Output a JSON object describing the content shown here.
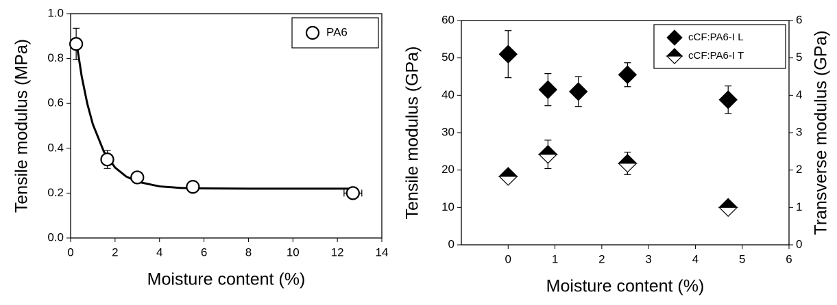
{
  "chart_data": [
    {
      "type": "scatter",
      "xlabel": "Moisture content (%)",
      "ylabel": "Tensile modulus (MPa)",
      "xlim": [
        0,
        14
      ],
      "xticks": [
        0,
        2,
        4,
        6,
        8,
        10,
        12,
        14
      ],
      "ylim": [
        0,
        1
      ],
      "yticks": [
        {
          "value": 0,
          "label": "0.0"
        },
        0.2,
        0.4,
        0.6,
        0.8,
        {
          "value": 1,
          "label": "1.0"
        }
      ],
      "legend": "upper right",
      "series": [
        {
          "name": "PA6",
          "color": "#000000",
          "marker": "circle",
          "x": [
            0.25,
            1.65,
            3.0,
            5.5,
            12.7
          ],
          "values": [
            0.865,
            0.35,
            0.27,
            0.228,
            0.2
          ],
          "errors": [
            0.07,
            0.04,
            0.02,
            0.01,
            0.01
          ],
          "xerrors": [
            0,
            0,
            0,
            0,
            0.4
          ]
        }
      ],
      "curve": {
        "color": "#000000",
        "x": [
          0.25,
          0.5,
          0.75,
          1,
          1.5,
          2,
          2.5,
          3,
          4,
          5,
          6,
          8,
          10,
          12.7
        ],
        "values": [
          0.88,
          0.72,
          0.599,
          0.507,
          0.384,
          0.314,
          0.274,
          0.251,
          0.23,
          0.223,
          0.221,
          0.22,
          0.22,
          0.22
        ]
      }
    },
    {
      "type": "scatter",
      "xlabel": "Moisture content (%)",
      "ylabel": "Tensile modulus (GPa)",
      "y2label": "Transverse modulus (GPa)",
      "xlim": [
        -1,
        6
      ],
      "xticks": [
        0,
        1,
        2,
        3,
        4,
        5,
        6
      ],
      "ylim": [
        0,
        60
      ],
      "yticks": [
        0,
        10,
        20,
        30,
        40,
        50,
        60
      ],
      "y2lim": [
        0,
        6
      ],
      "y2ticks": [
        0,
        1,
        2,
        3,
        4,
        5,
        6
      ],
      "legend": "upper right",
      "series": [
        {
          "name": "cCF:PA6-I L",
          "color": "#000000",
          "marker": "diamond",
          "x": [
            0,
            0.85,
            1.5,
            2.55,
            4.7
          ],
          "values": [
            51,
            41.5,
            41,
            45.5,
            38.8
          ],
          "errors": [
            6.3,
            4.3,
            4,
            3.2,
            3.7
          ]
        },
        {
          "name": "cCF:PA6-I T",
          "color": "#000000",
          "marker": "half-diamond",
          "axis": "y2",
          "x": [
            0,
            0.85,
            2.55,
            4.7
          ],
          "values": [
            1.83,
            2.42,
            2.18,
            1.0
          ],
          "errors": [
            0.05,
            0.38,
            0.3,
            0.05
          ]
        }
      ]
    }
  ]
}
